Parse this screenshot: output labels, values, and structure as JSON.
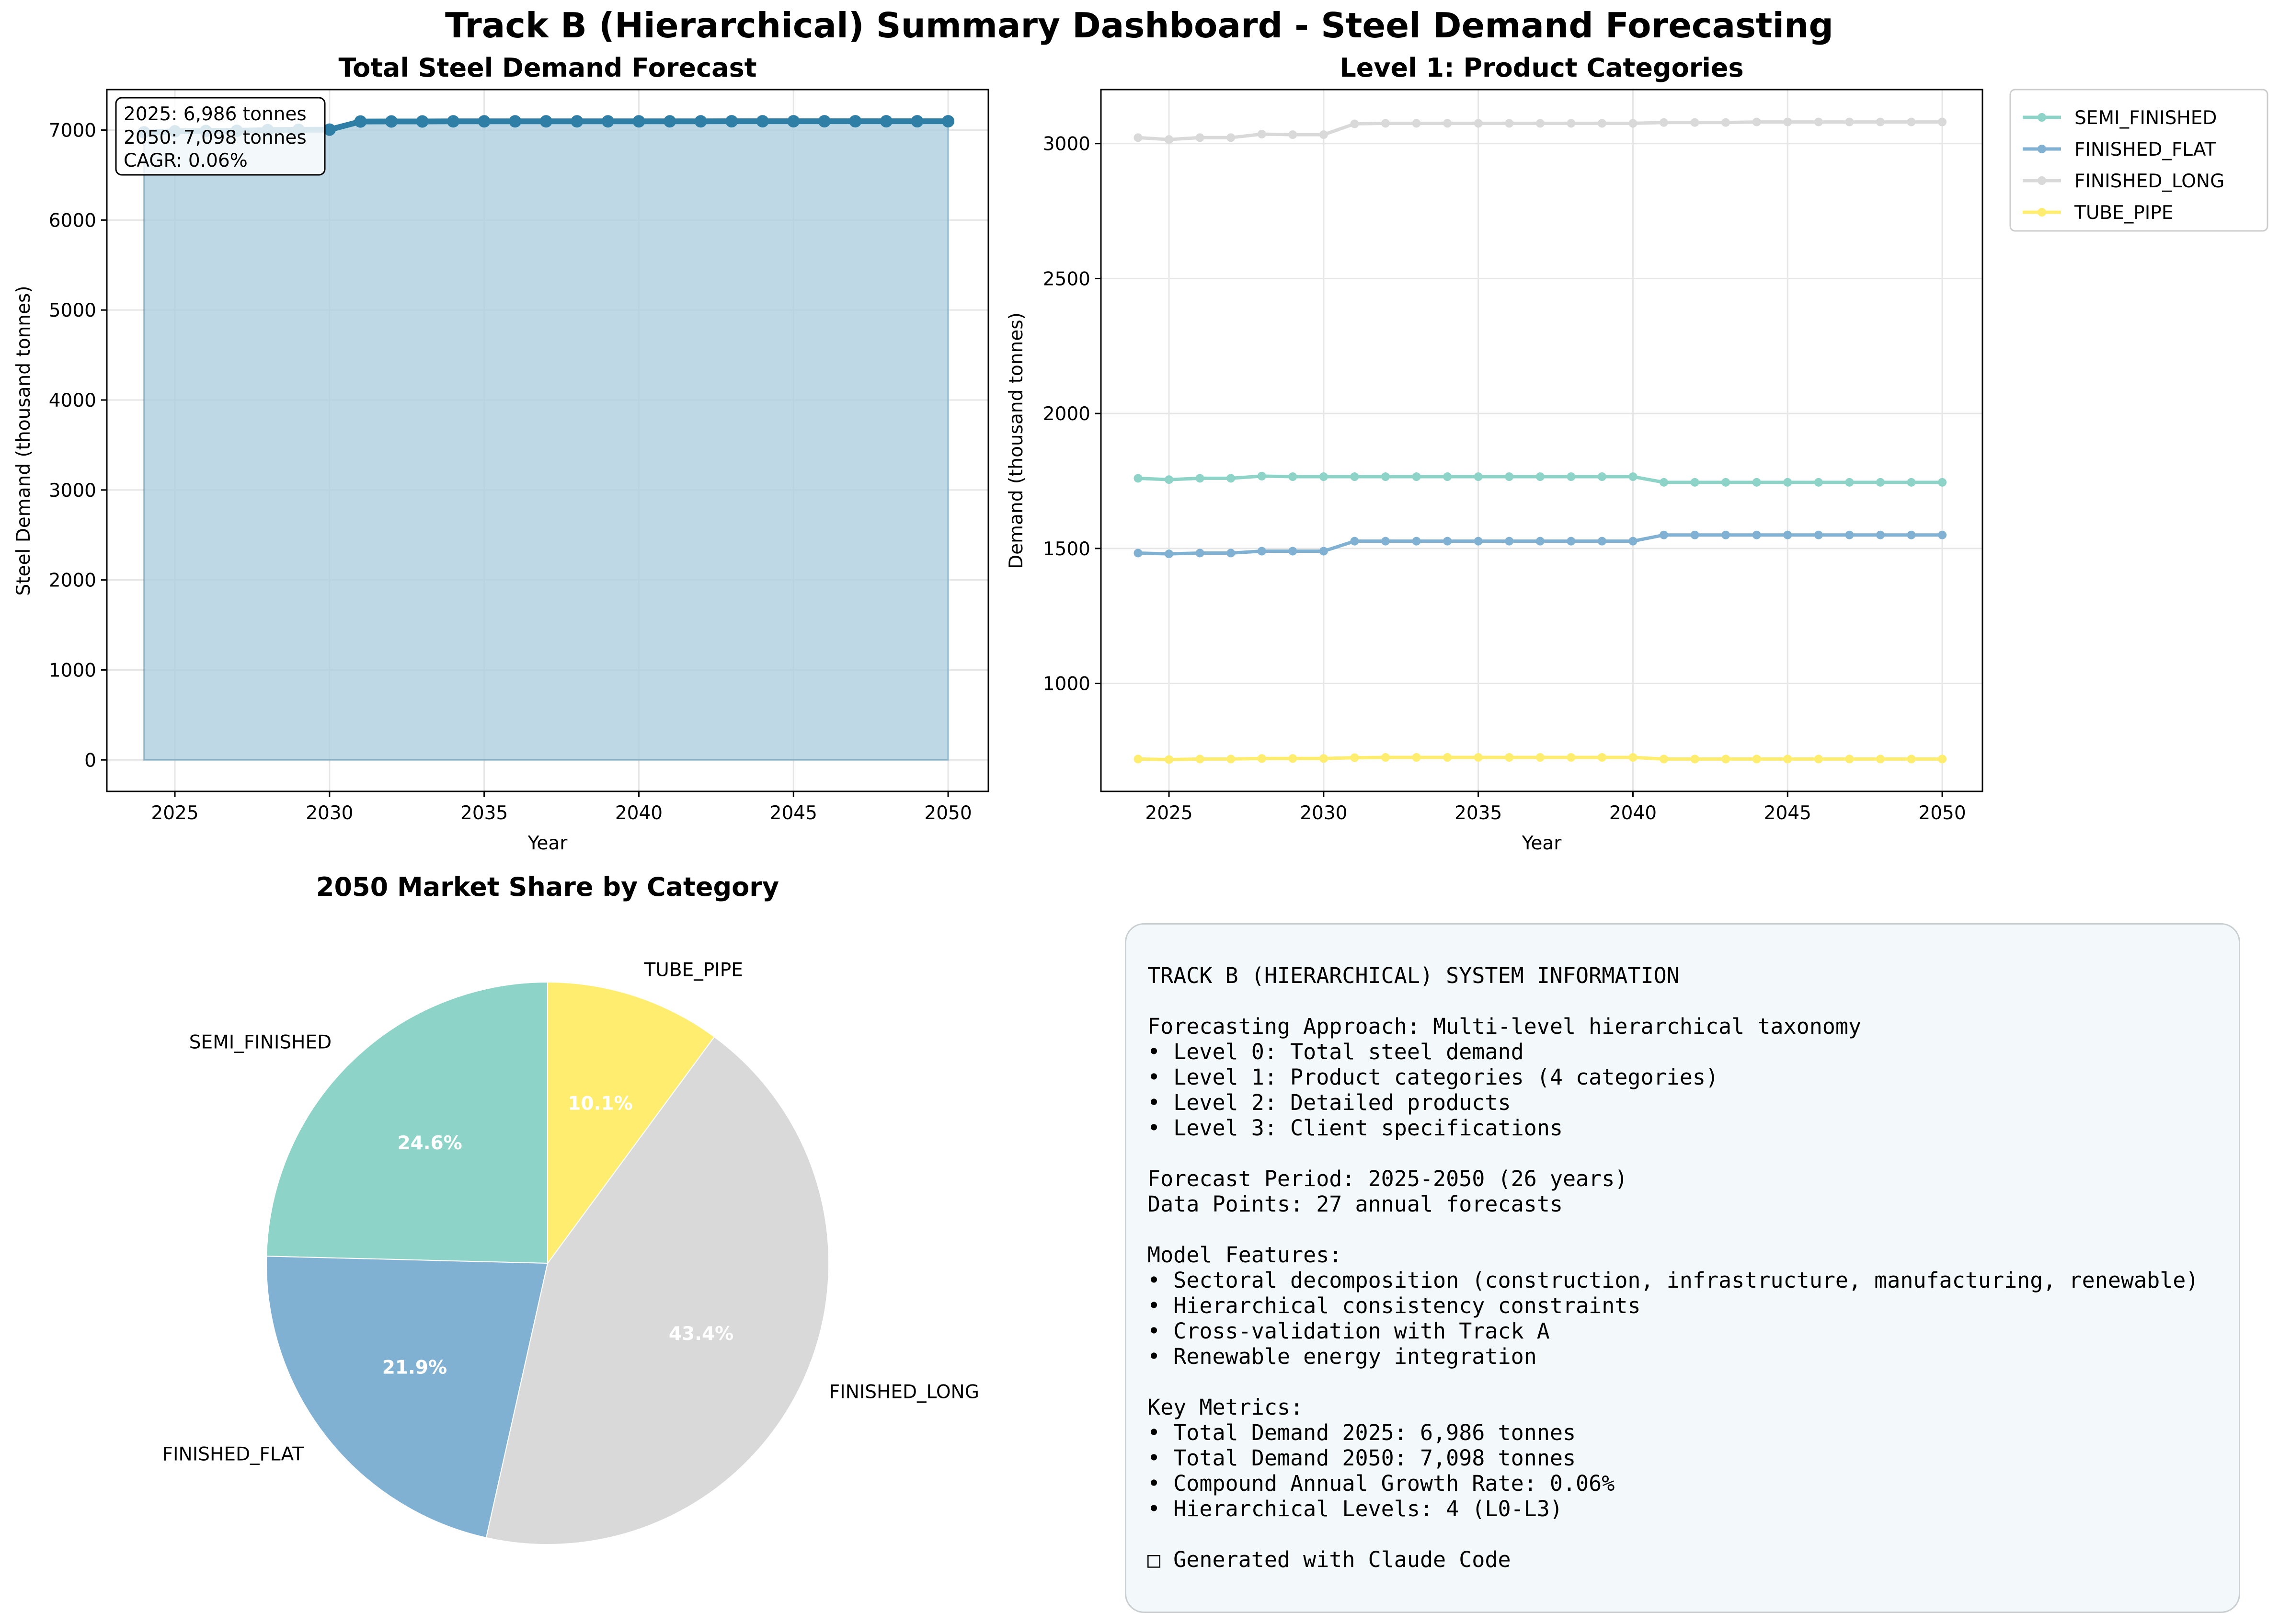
{
  "suptitle": "Track B (Hierarchical) Summary Dashboard - Steel Demand Forecasting",
  "colors": {
    "total_line": "#2e7ea6",
    "total_fill": "#aecfdf",
    "semi_finished": "#8dd3c7",
    "finished_flat": "#80b1d3",
    "finished_long": "#d9d9d9",
    "tube_pipe": "#ffed6f",
    "grid": "#e6e6e6",
    "info_bg": "#f3f9fa"
  },
  "chart_data": [
    {
      "type": "area",
      "title": "Total Steel Demand Forecast",
      "xlabel": "Year",
      "ylabel": "Steel Demand (thousand tonnes)",
      "xlim": [
        2022.8,
        2051.3
      ],
      "ylim": [
        -350,
        7450
      ],
      "xticks": [
        2025,
        2030,
        2035,
        2040,
        2045,
        2050
      ],
      "yticks": [
        0,
        1000,
        2000,
        3000,
        4000,
        5000,
        6000,
        7000
      ],
      "grid": true,
      "x": [
        2024,
        2025,
        2026,
        2027,
        2028,
        2029,
        2030,
        2031,
        2032,
        2033,
        2034,
        2035,
        2036,
        2037,
        2038,
        2039,
        2040,
        2041,
        2042,
        2043,
        2044,
        2045,
        2046,
        2047,
        2048,
        2049,
        2050
      ],
      "series": [
        {
          "values": [
            6975,
            6986,
            6990,
            6992,
            7000,
            7003,
            7005,
            7095,
            7096,
            7096,
            7097,
            7097,
            7097,
            7097,
            7097,
            7097,
            7097,
            7097,
            7097,
            7098,
            7098,
            7098,
            7098,
            7098,
            7098,
            7098,
            7098
          ]
        }
      ],
      "annotation": [
        "2025: 6,986 tonnes",
        "2050: 7,098 tonnes",
        "CAGR: 0.06%"
      ]
    },
    {
      "type": "line",
      "title": "Level 1: Product Categories",
      "xlabel": "Year",
      "ylabel": "Demand (thousand tonnes)",
      "xlim": [
        2022.8,
        2051.3
      ],
      "ylim": [
        600,
        3200
      ],
      "xticks": [
        2025,
        2030,
        2035,
        2040,
        2045,
        2050
      ],
      "yticks": [
        1000,
        1500,
        2000,
        2500,
        3000
      ],
      "grid": true,
      "legend_position": "outside-right",
      "x": [
        2024,
        2025,
        2026,
        2027,
        2028,
        2029,
        2030,
        2031,
        2032,
        2033,
        2034,
        2035,
        2036,
        2037,
        2038,
        2039,
        2040,
        2041,
        2042,
        2043,
        2044,
        2045,
        2046,
        2047,
        2048,
        2049,
        2050
      ],
      "series": [
        {
          "name": "SEMI_FINISHED",
          "color_key": "semi_finished",
          "values": [
            1760,
            1755,
            1760,
            1760,
            1768,
            1766,
            1766,
            1766,
            1766,
            1766,
            1766,
            1766,
            1766,
            1766,
            1766,
            1766,
            1766,
            1745,
            1745,
            1745,
            1745,
            1745,
            1745,
            1745,
            1745,
            1745,
            1745
          ]
        },
        {
          "name": "FINISHED_FLAT",
          "color_key": "finished_flat",
          "values": [
            1483,
            1480,
            1483,
            1483,
            1490,
            1490,
            1490,
            1527,
            1527,
            1527,
            1527,
            1527,
            1527,
            1527,
            1527,
            1527,
            1527,
            1550,
            1550,
            1550,
            1550,
            1550,
            1550,
            1550,
            1550,
            1550,
            1550
          ]
        },
        {
          "name": "FINISHED_LONG",
          "color_key": "finished_long",
          "values": [
            3022,
            3015,
            3022,
            3022,
            3035,
            3033,
            3033,
            3073,
            3075,
            3075,
            3075,
            3075,
            3075,
            3075,
            3075,
            3075,
            3075,
            3078,
            3078,
            3078,
            3080,
            3080,
            3080,
            3080,
            3080,
            3080,
            3080
          ]
        },
        {
          "name": "TUBE_PIPE",
          "color_key": "tube_pipe",
          "values": [
            720,
            718,
            720,
            720,
            722,
            722,
            722,
            725,
            726,
            726,
            726,
            726,
            726,
            726,
            726,
            726,
            726,
            720,
            720,
            720,
            720,
            720,
            720,
            720,
            720,
            720,
            720
          ]
        }
      ]
    },
    {
      "type": "pie",
      "title": "2050 Market Share by Category",
      "slices": [
        {
          "label": "SEMI_FINISHED",
          "value": 24.6,
          "pct_label": "24.6%",
          "color_key": "semi_finished"
        },
        {
          "label": "FINISHED_FLAT",
          "value": 21.9,
          "pct_label": "21.9%",
          "color_key": "finished_flat"
        },
        {
          "label": "FINISHED_LONG",
          "value": 43.4,
          "pct_label": "43.4%",
          "color_key": "finished_long"
        },
        {
          "label": "TUBE_PIPE",
          "value": 10.1,
          "pct_label": "10.1%",
          "color_key": "tube_pipe"
        }
      ],
      "start_angle": 90,
      "direction": "counterclockwise"
    }
  ],
  "info_panel": {
    "lines": [
      "TRACK B (HIERARCHICAL) SYSTEM INFORMATION",
      "",
      "Forecasting Approach: Multi-level hierarchical taxonomy",
      "• Level 0: Total steel demand",
      "• Level 1: Product categories (4 categories)",
      "• Level 2: Detailed products",
      "• Level 3: Client specifications",
      "",
      "Forecast Period: 2025-2050 (26 years)",
      "Data Points: 27 annual forecasts",
      "",
      "Model Features:",
      "• Sectoral decomposition (construction, infrastructure, manufacturing, renewable)",
      "• Hierarchical consistency constraints",
      "• Cross-validation with Track A",
      "• Renewable energy integration",
      "",
      "Key Metrics:",
      "• Total Demand 2025: 6,986 tonnes",
      "• Total Demand 2050: 7,098 tonnes",
      "• Compound Annual Growth Rate: 0.06%",
      "• Hierarchical Levels: 4 (L0-L3)",
      "",
      "□ Generated with Claude Code"
    ]
  }
}
